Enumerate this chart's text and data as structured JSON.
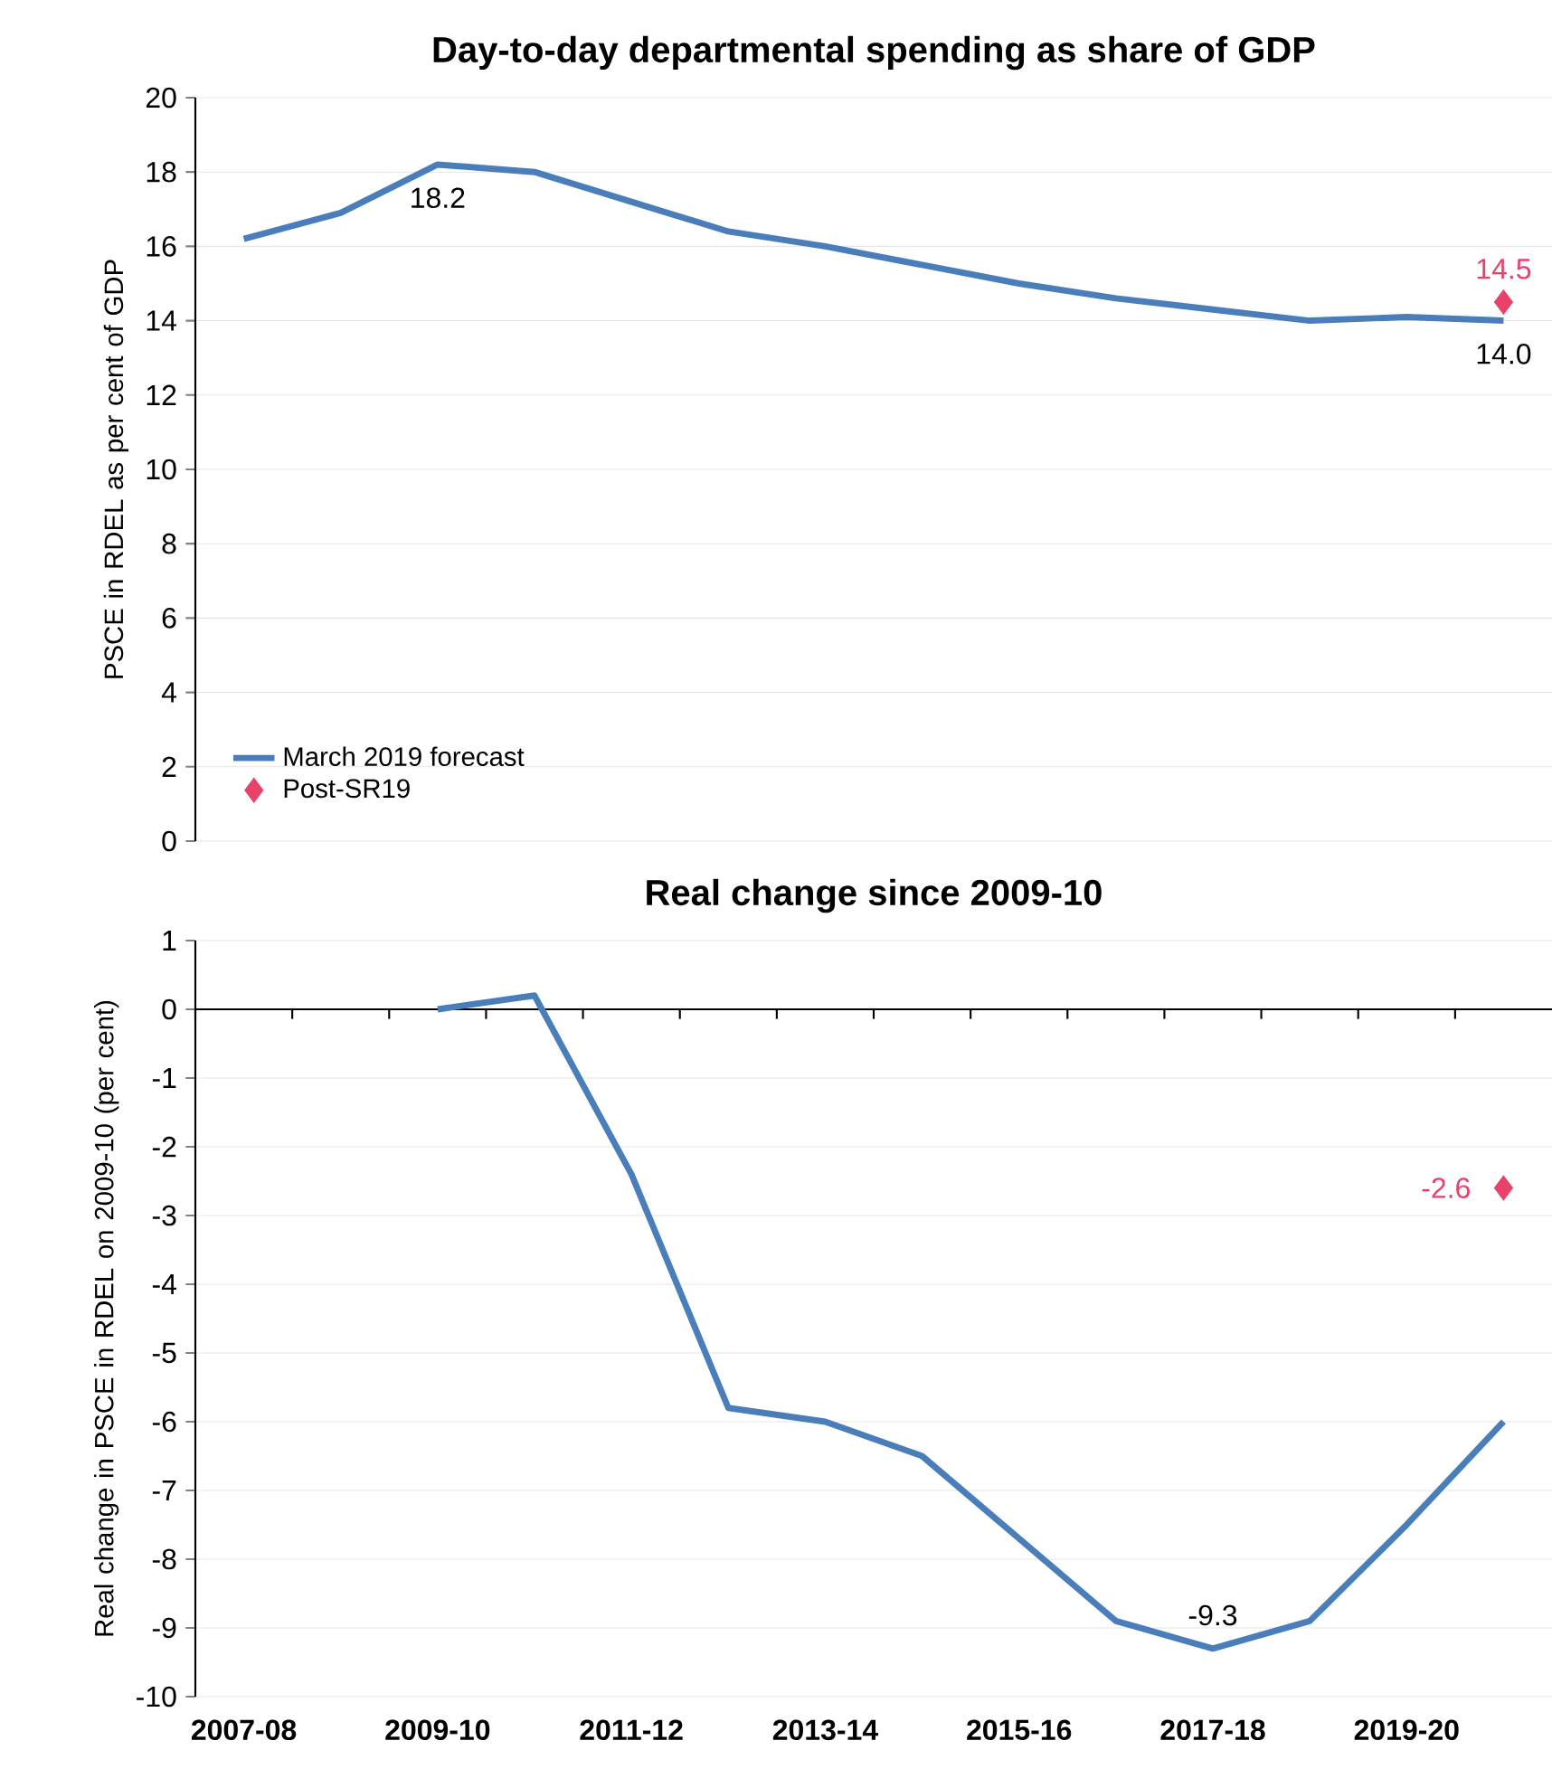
{
  "chart_data": [
    {
      "type": "line",
      "title": "Day-to-day departmental spending as share of GDP",
      "ylabel": "PSCE in RDEL as per cent of GDP",
      "categories": [
        "2007-08",
        null,
        "2009-10",
        null,
        "2011-12",
        null,
        "2013-14",
        null,
        "2015-16",
        null,
        "2017-18",
        null,
        "2019-20",
        null
      ],
      "series": [
        {
          "name": "March 2019 forecast",
          "color": "#4a7ebb",
          "marker": "none",
          "values": [
            16.2,
            16.9,
            18.2,
            18.0,
            17.2,
            16.4,
            16.0,
            15.5,
            15.0,
            14.6,
            14.3,
            14.0,
            14.1,
            14.0
          ],
          "value_labels": [
            null,
            null,
            "18.2",
            null,
            null,
            null,
            null,
            null,
            null,
            null,
            null,
            null,
            null,
            "14.0"
          ]
        },
        {
          "name": "Post-SR19",
          "type": "scatter",
          "color": "#e8426a",
          "marker": "diamond",
          "values": [
            null,
            null,
            null,
            null,
            null,
            null,
            null,
            null,
            null,
            null,
            null,
            null,
            null,
            14.5
          ],
          "value_labels": [
            null,
            null,
            null,
            null,
            null,
            null,
            null,
            null,
            null,
            null,
            null,
            null,
            null,
            "14.5"
          ]
        }
      ],
      "ylim": [
        0,
        20
      ],
      "yticks": [
        0,
        2,
        4,
        6,
        8,
        10,
        12,
        14,
        16,
        18,
        20
      ],
      "grid": "y",
      "legend": "bottom left",
      "tick_labels": "y"
    },
    {
      "type": "line",
      "title": "Real change since 2009-10",
      "ylabel": "Real change in PSCE in RDEL on 2009-10 (per cent)",
      "categories": [
        "2007-08",
        null,
        "2009-10",
        null,
        "2011-12",
        null,
        "2013-14",
        null,
        "2015-16",
        null,
        "2017-18",
        null,
        "2019-20",
        null
      ],
      "series": [
        {
          "color": "#4a7ebb",
          "marker": "none",
          "values": [
            null,
            null,
            0,
            0.2,
            -2.4,
            -5.8,
            -6.0,
            -6.5,
            -7.7,
            -8.9,
            -9.3,
            -8.9,
            -7.5,
            -6.0
          ],
          "value_labels": [
            null,
            null,
            null,
            null,
            null,
            null,
            null,
            null,
            null,
            null,
            "-9.3",
            null,
            null,
            null
          ]
        },
        {
          "type": "scatter",
          "color": "#e8426a",
          "marker": "diamond",
          "values": [
            null,
            null,
            null,
            null,
            null,
            null,
            null,
            null,
            null,
            null,
            null,
            null,
            null,
            -2.6
          ],
          "value_labels": [
            null,
            null,
            null,
            null,
            null,
            null,
            null,
            null,
            null,
            null,
            null,
            null,
            null,
            "-2.6"
          ]
        }
      ],
      "ylim": [
        -10,
        1
      ],
      "yticks": [
        -10,
        -9,
        -8,
        -7,
        -6,
        -5,
        -4,
        -3,
        -2,
        -1,
        0,
        1
      ],
      "grid": "y"
    }
  ]
}
